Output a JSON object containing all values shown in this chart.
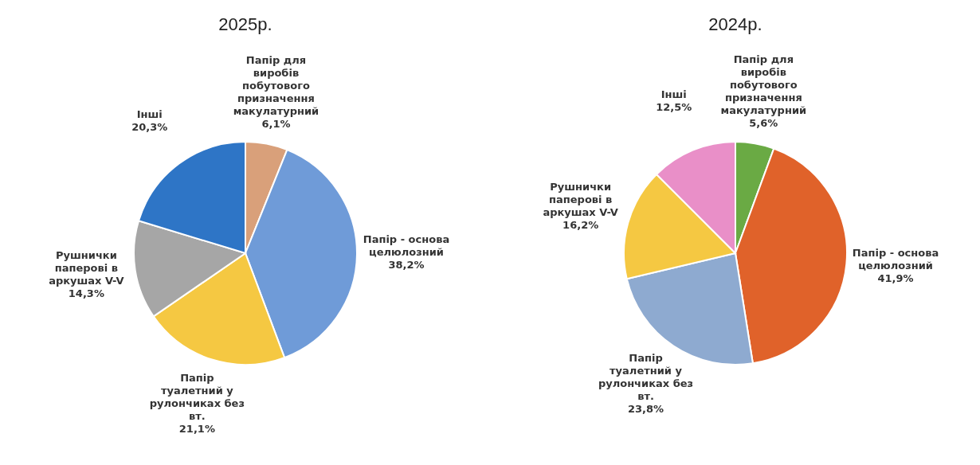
{
  "chart_data": [
    {
      "type": "pie",
      "title": "2025р.",
      "categories": [
        "Папір для виробів побутового призначення макулатурний",
        "Папір - основа целюлозний",
        "Папір туалетний у рулончиках без вт.",
        "Рушнички паперові в аркушах V-V",
        "Інші"
      ],
      "values": [
        6.1,
        38.2,
        21.1,
        14.3,
        20.3
      ],
      "colors": [
        "#d9a07a",
        "#6f9bd8",
        "#f5c842",
        "#a6a6a6",
        "#2e75c6"
      ],
      "value_labels": [
        "6,1%",
        "38,2%",
        "21,1%",
        "14,3%",
        "20,3%"
      ]
    },
    {
      "type": "pie",
      "title": "2024р.",
      "categories": [
        "Папір для виробів побутового призначення макулатурний",
        "Папір - основа целюлозний",
        "Папір туалетний у рулончиках без вт.",
        "Рушнички паперові в аркушах V-V",
        "Інші"
      ],
      "values": [
        5.6,
        41.9,
        23.8,
        16.2,
        12.5
      ],
      "colors": [
        "#6aaa44",
        "#e0622a",
        "#8eaad0",
        "#f5c842",
        "#e98fc8"
      ],
      "value_labels": [
        "5,6%",
        "41,9%",
        "23,8%",
        "16,2%",
        "12,5%"
      ]
    }
  ]
}
